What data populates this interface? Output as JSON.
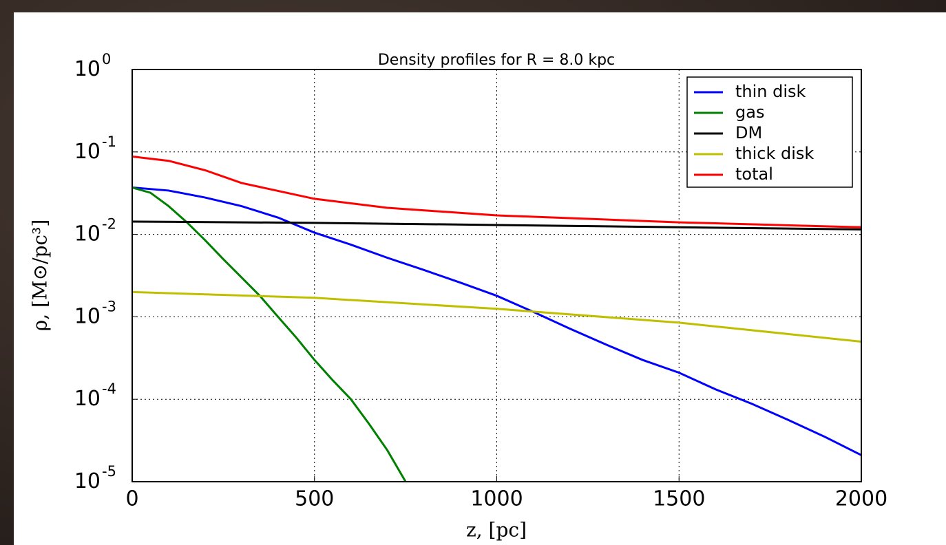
{
  "chart_data": {
    "type": "line",
    "title": "Density profiles for R = 8.0 kpc",
    "xlabel": "z, [pc]",
    "ylabel": "ρ, [M⊙/pc³]",
    "xlim": [
      0,
      2000
    ],
    "xticks": [
      0,
      500,
      1000,
      1500,
      2000
    ],
    "ylim": [
      1e-05,
      1
    ],
    "log_y": true,
    "grid": true,
    "legend": "upper right",
    "yticks": [
      {
        "value": 1e-05,
        "label": "10",
        "exponent": "-5"
      },
      {
        "value": 0.0001,
        "label": "10",
        "exponent": "-4"
      },
      {
        "value": 0.001,
        "label": "10",
        "exponent": "-3"
      },
      {
        "value": 0.01,
        "label": "10",
        "exponent": "-2"
      },
      {
        "value": 0.1,
        "label": "10",
        "exponent": "-1"
      },
      {
        "value": 1,
        "label": "10",
        "exponent": "0"
      }
    ],
    "series": [
      {
        "name": "thin disk",
        "color": "#0000ff",
        "x": [
          0,
          100,
          200,
          300,
          400,
          500,
          600,
          700,
          800,
          900,
          1000,
          1100,
          1200,
          1300,
          1400,
          1500,
          1600,
          1700,
          1800,
          1900,
          2000
        ],
        "values": [
          0.037,
          0.034,
          0.028,
          0.022,
          0.016,
          0.0105,
          0.0075,
          0.0052,
          0.0037,
          0.0026,
          0.0018,
          0.00115,
          0.00072,
          0.00046,
          0.0003,
          0.00021,
          0.000132,
          8.8e-05,
          5.6e-05,
          3.5e-05,
          2.1e-05
        ]
      },
      {
        "name": "gas",
        "color": "#008000",
        "x": [
          0,
          50,
          100,
          150,
          200,
          250,
          300,
          350,
          400,
          450,
          500,
          550,
          600,
          650,
          700,
          750
        ],
        "values": [
          0.037,
          0.032,
          0.022,
          0.014,
          0.0085,
          0.005,
          0.003,
          0.0018,
          0.001,
          0.00056,
          0.0003,
          0.00017,
          0.0001,
          5e-05,
          2.4e-05,
          1e-05
        ]
      },
      {
        "name": "DM",
        "color": "#000000",
        "x": [
          0,
          500,
          1000,
          1500,
          2000
        ],
        "values": [
          0.0143,
          0.0138,
          0.013,
          0.0122,
          0.0115
        ]
      },
      {
        "name": "thick disk",
        "color": "#bfbf00",
        "x": [
          0,
          500,
          1000,
          1500,
          2000
        ],
        "values": [
          0.002,
          0.0017,
          0.00125,
          0.00085,
          0.0005
        ]
      },
      {
        "name": "total",
        "color": "#ff0000",
        "x": [
          0,
          100,
          200,
          300,
          500,
          700,
          1000,
          1500,
          2000
        ],
        "values": [
          0.088,
          0.078,
          0.06,
          0.042,
          0.027,
          0.021,
          0.017,
          0.014,
          0.0122
        ]
      }
    ]
  }
}
